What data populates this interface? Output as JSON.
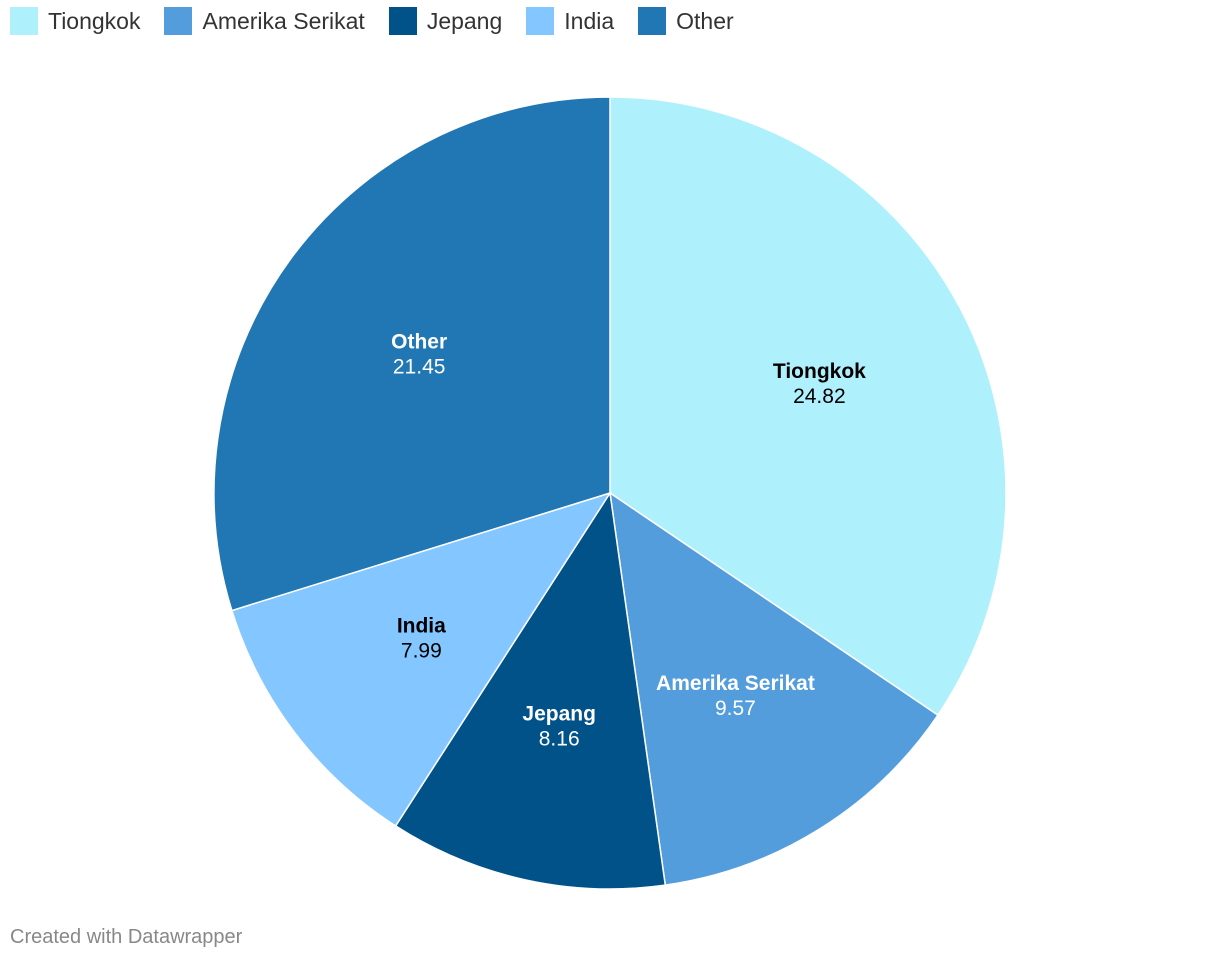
{
  "chart_data": {
    "type": "pie",
    "categories": [
      "Tiongkok",
      "Amerika Serikat",
      "Jepang",
      "India",
      "Other"
    ],
    "values": [
      24.82,
      9.57,
      8.16,
      7.99,
      21.45
    ],
    "value_labels": [
      "24.82",
      "9.57",
      "8.16",
      "7.99",
      "21.45"
    ],
    "colors": [
      "#aef0fb",
      "#549ddc",
      "#02528a",
      "#84c6ff",
      "#2077b4"
    ],
    "label_colors": [
      "#000000",
      "#ffffff",
      "#ffffff",
      "#000000",
      "#ffffff"
    ],
    "legend_position": "top-left",
    "start_angle": "12 o'clock, clockwise"
  },
  "footer": {
    "credit": "Created with Datawrapper"
  }
}
